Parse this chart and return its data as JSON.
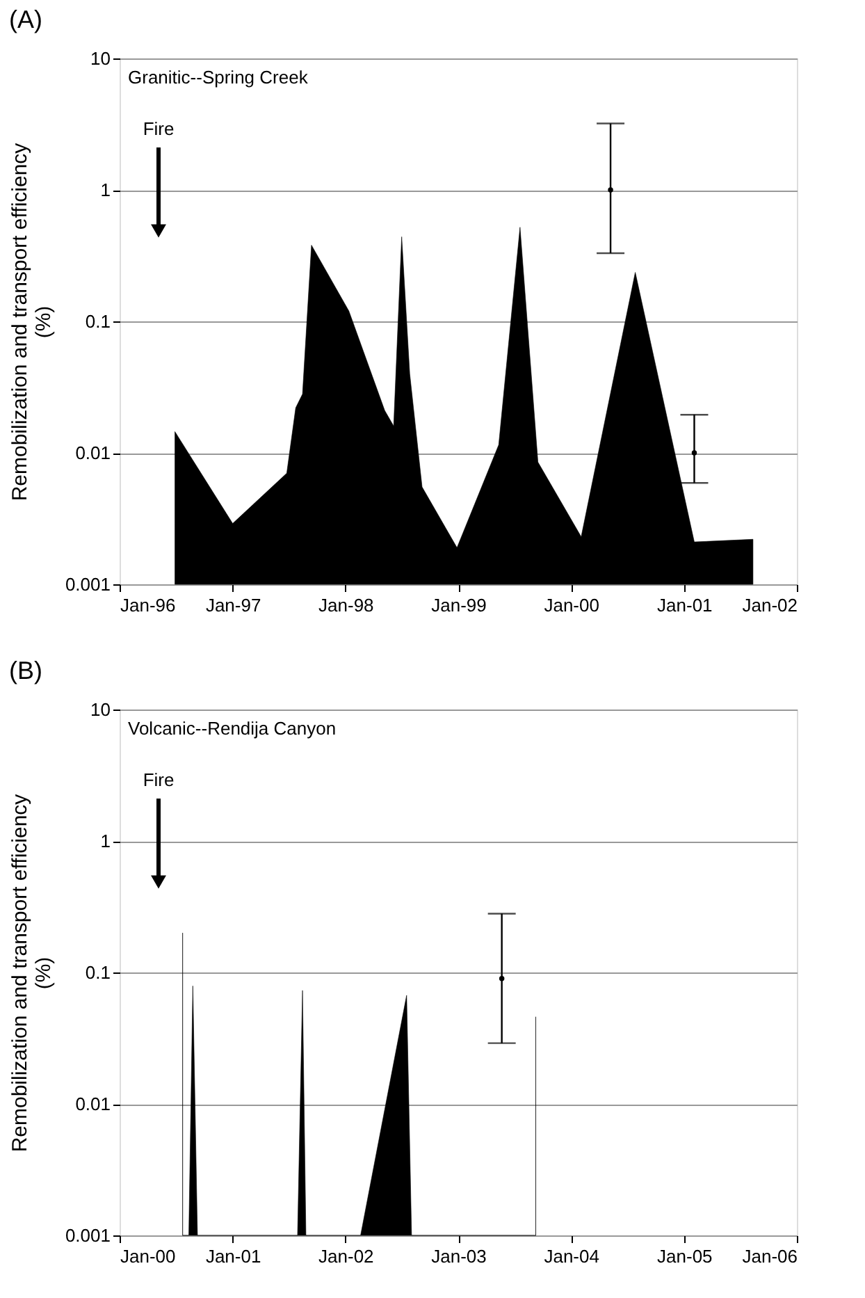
{
  "chart_data": [
    {
      "type": "area",
      "title": "(A)",
      "subtitle": "Granitic--Spring Creek",
      "ylabel": "Remobilization and transport efficiency (%)",
      "log": true,
      "grid": "y",
      "xlim": [
        "1996-01-01",
        "2002-01-01"
      ],
      "xticks": [
        {
          "value": "1996-01-01",
          "label": "Jan-96"
        },
        {
          "value": "1997-01-01",
          "label": "Jan-97"
        },
        {
          "value": "1998-01-01",
          "label": "Jan-98"
        },
        {
          "value": "1999-01-01",
          "label": "Jan-99"
        },
        {
          "value": "2000-01-01",
          "label": "Jan-00"
        },
        {
          "value": "2001-01-01",
          "label": "Jan-01"
        },
        {
          "value": "2002-01-01",
          "label": "Jan-02"
        }
      ],
      "ylim": [
        0.001,
        10
      ],
      "yticks": [
        0.001,
        0.01,
        0.1,
        1,
        10
      ],
      "series": [
        {
          "color": "#000000",
          "x": [
            "1996-06-28",
            "1997-01-01",
            "1997-06-25",
            "1997-07-24",
            "1997-08-15",
            "1997-09-13",
            "1998-01-12",
            "1998-05-08",
            "1998-06-06",
            "1998-07-02",
            "1998-07-28",
            "1998-09-06",
            "1998-12-28",
            "1999-05-12",
            "1999-07-20",
            "1999-09-16",
            "2000-02-03",
            "2000-07-27",
            "2001-02-03",
            "2001-08-12"
          ],
          "values": [
            0.0145,
            0.0029,
            0.007,
            0.022,
            0.028,
            0.38,
            0.12,
            0.021,
            0.016,
            0.44,
            0.04,
            0.0055,
            0.0019,
            0.0115,
            0.52,
            0.0085,
            0.0023,
            0.236,
            0.0021,
            0.0022
          ]
        },
        {
          "type": "scatter",
          "marker": "circle",
          "color": "#000000",
          "x": [
            "2000-05-08",
            "2001-02-03"
          ],
          "values": [
            1,
            0.01
          ],
          "errors": [
            [
              0.33,
              3.2
            ],
            [
              0.0059,
              0.0195
            ]
          ]
        }
      ],
      "annotations": [
        "Fire"
      ]
    },
    {
      "type": "area",
      "title": "(B)",
      "subtitle": "Volcanic--Rendija Canyon",
      "ylabel": "Remobilization and transport efficiency (%)",
      "log": true,
      "grid": "y",
      "xlim": [
        "2000-01-01",
        "2006-01-01"
      ],
      "xticks": [
        {
          "value": "2000-01-01",
          "label": "Jan-00"
        },
        {
          "value": "2001-01-01",
          "label": "Jan-01"
        },
        {
          "value": "2002-01-01",
          "label": "Jan-02"
        },
        {
          "value": "2003-01-01",
          "label": "Jan-03"
        },
        {
          "value": "2004-01-01",
          "label": "Jan-04"
        },
        {
          "value": "2005-01-01",
          "label": "Jan-05"
        },
        {
          "value": "2006-01-01",
          "label": "Jan-06"
        }
      ],
      "ylim": [
        0.001,
        10
      ],
      "yticks": [
        0.001,
        0.01,
        0.1,
        1,
        10
      ],
      "series": [
        {
          "color": "#000000",
          "x": [
            "2000-07-23",
            "2000-07-23",
            "2000-07-23",
            "2000-08-12",
            "2000-08-25",
            "2000-09-09",
            "2001-07-30",
            "2001-08-15",
            "2001-08-26",
            "2002-02-19",
            "2002-07-18",
            "2002-08-03",
            "2003-09-09",
            "2003-09-09",
            "2003-09-09"
          ],
          "values": [
            0.001,
            0.2,
            0.001,
            0.001,
            0.079,
            0.001,
            0.001,
            0.073,
            0.001,
            0.001,
            0.067,
            0.001,
            0.001,
            0.046,
            0.001
          ]
        },
        {
          "type": "scatter",
          "marker": "circle",
          "color": "#000000",
          "x": [
            "2003-05-22"
          ],
          "values": [
            0.09
          ],
          "errors": [
            [
              0.029,
              0.28
            ]
          ]
        }
      ],
      "annotations": [
        "Fire"
      ]
    }
  ]
}
